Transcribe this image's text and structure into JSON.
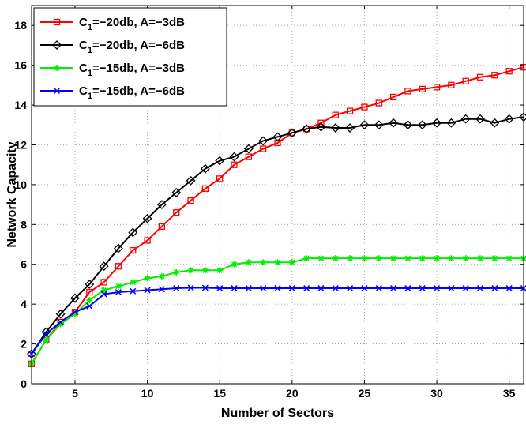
{
  "chart_data": {
    "type": "line",
    "title": "",
    "xlabel": "Number of Sectors",
    "ylabel": "Network Capacity",
    "xlim": [
      2,
      36
    ],
    "ylim": [
      0,
      19
    ],
    "xticks": [
      5,
      10,
      15,
      20,
      25,
      30,
      35
    ],
    "yticks": [
      0,
      2,
      4,
      6,
      8,
      10,
      12,
      14,
      16,
      18
    ],
    "grid": true,
    "legend_position": "top-left",
    "x": [
      2,
      3,
      4,
      5,
      6,
      7,
      8,
      9,
      10,
      11,
      12,
      13,
      14,
      15,
      16,
      17,
      18,
      19,
      20,
      21,
      22,
      23,
      24,
      25,
      26,
      27,
      28,
      29,
      30,
      31,
      32,
      33,
      34,
      35,
      36
    ],
    "series": [
      {
        "name_main": "C",
        "name_sub": "1",
        "name_rest": "=−20db, A=−3dB",
        "color": "#ff0000",
        "marker": "square",
        "values": [
          1.0,
          2.2,
          3.1,
          3.6,
          4.6,
          5.1,
          5.9,
          6.7,
          7.2,
          7.9,
          8.6,
          9.2,
          9.8,
          10.3,
          11.0,
          11.4,
          11.8,
          12.1,
          12.6,
          12.8,
          13.1,
          13.5,
          13.7,
          13.9,
          14.1,
          14.4,
          14.7,
          14.8,
          14.9,
          15.0,
          15.2,
          15.4,
          15.5,
          15.7,
          15.9
        ]
      },
      {
        "name_main": "C",
        "name_sub": "1",
        "name_rest": "=−20db, A=−6dB",
        "color": "#000000",
        "marker": "diamond",
        "values": [
          1.5,
          2.6,
          3.5,
          4.3,
          5.0,
          5.9,
          6.8,
          7.6,
          8.3,
          9.0,
          9.6,
          10.2,
          10.8,
          11.2,
          11.4,
          11.8,
          12.2,
          12.4,
          12.6,
          12.8,
          12.9,
          12.85,
          12.85,
          13.0,
          13.0,
          13.1,
          13.0,
          13.0,
          13.1,
          13.1,
          13.3,
          13.3,
          13.1,
          13.3,
          13.4
        ]
      },
      {
        "name_main": "C",
        "name_sub": "1",
        "name_rest": "=−15db, A=−3dB",
        "color": "#00ee00",
        "marker": "asterisk",
        "values": [
          1.0,
          2.2,
          3.0,
          3.5,
          4.2,
          4.7,
          4.9,
          5.1,
          5.3,
          5.4,
          5.6,
          5.7,
          5.7,
          5.7,
          6.0,
          6.1,
          6.1,
          6.1,
          6.1,
          6.3,
          6.3,
          6.3,
          6.3,
          6.3,
          6.3,
          6.3,
          6.3,
          6.3,
          6.3,
          6.3,
          6.3,
          6.3,
          6.3,
          6.3,
          6.3
        ]
      },
      {
        "name_main": "C",
        "name_sub": "1",
        "name_rest": "=−15db, A=−6dB",
        "color": "#0000ff",
        "marker": "x",
        "values": [
          1.5,
          2.5,
          3.1,
          3.6,
          3.9,
          4.5,
          4.6,
          4.65,
          4.7,
          4.75,
          4.8,
          4.82,
          4.82,
          4.8,
          4.8,
          4.8,
          4.8,
          4.8,
          4.8,
          4.8,
          4.8,
          4.8,
          4.8,
          4.8,
          4.8,
          4.8,
          4.8,
          4.8,
          4.8,
          4.8,
          4.8,
          4.8,
          4.8,
          4.8,
          4.8
        ]
      }
    ]
  }
}
